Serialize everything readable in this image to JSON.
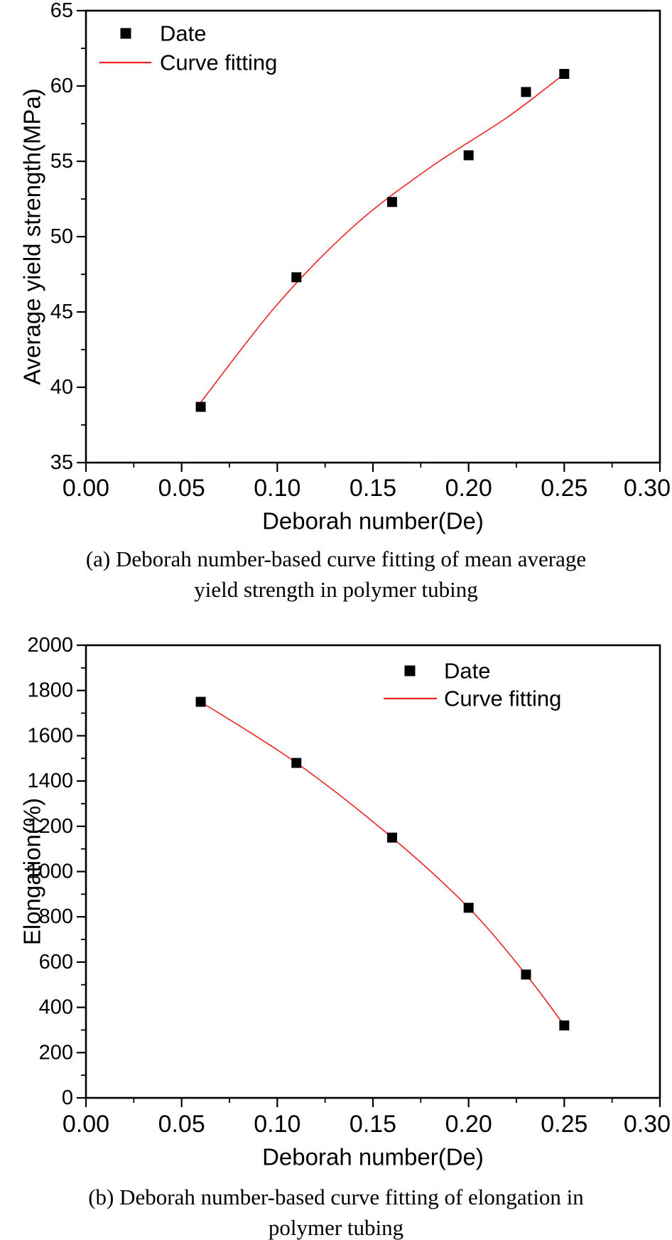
{
  "figure": {
    "background": "#ffffff",
    "axis_color": "#000000"
  },
  "chart_data": [
    {
      "id": "a",
      "type": "scatter",
      "title": "",
      "xlabel": "Deborah number(De)",
      "ylabel": "Average yield strength(MPa)",
      "xlim": [
        0,
        0.3
      ],
      "ylim": [
        35,
        65
      ],
      "xticks": [
        0,
        0.05,
        0.1,
        0.15,
        0.2,
        0.25,
        0.3
      ],
      "xtick_labels": [
        "0.00",
        "0.05",
        "0.10",
        "0.15",
        "0.20",
        "0.25",
        "0.30"
      ],
      "yticks": [
        35,
        40,
        45,
        50,
        55,
        60,
        65
      ],
      "ytick_labels": [
        "35",
        "40",
        "45",
        "50",
        "55",
        "60",
        "65"
      ],
      "x_minor_step": 0.025,
      "y_minor_step": 2.5,
      "grid": false,
      "legend_position": "upper-left-inside",
      "series": [
        {
          "name": "Date",
          "kind": "scatter",
          "marker": "square",
          "color": "#000000",
          "x": [
            0.06,
            0.11,
            0.16,
            0.2,
            0.23,
            0.25
          ],
          "y": [
            38.7,
            47.3,
            52.3,
            55.4,
            59.6,
            60.8
          ]
        },
        {
          "name": "Curve fitting",
          "kind": "line",
          "color": "#ee2222",
          "x": [
            0.06,
            0.1,
            0.14,
            0.18,
            0.22,
            0.25
          ],
          "y": [
            39.0,
            45.5,
            50.7,
            54.6,
            57.9,
            60.8
          ]
        }
      ],
      "caption_line1": "(a) Deborah number-based curve fitting of mean average",
      "caption_line2": "yield strength in polymer tubing"
    },
    {
      "id": "b",
      "type": "scatter",
      "title": "",
      "xlabel": "Deborah number(De)",
      "ylabel": "Elongation(%)",
      "xlim": [
        0,
        0.3
      ],
      "ylim": [
        0,
        2000
      ],
      "xticks": [
        0,
        0.05,
        0.1,
        0.15,
        0.2,
        0.25,
        0.3
      ],
      "xtick_labels": [
        "0.00",
        "0.05",
        "0.10",
        "0.15",
        "0.20",
        "0.25",
        "0.30"
      ],
      "yticks": [
        0,
        200,
        400,
        600,
        800,
        1000,
        1200,
        1400,
        1600,
        1800,
        2000
      ],
      "ytick_labels": [
        "0",
        "200",
        "400",
        "600",
        "800",
        "1000",
        "1200",
        "1400",
        "1600",
        "1800",
        "2000"
      ],
      "x_minor_step": 0.025,
      "y_minor_step": 100,
      "grid": false,
      "legend_position": "upper-right-inside",
      "series": [
        {
          "name": "Date",
          "kind": "scatter",
          "marker": "square",
          "color": "#000000",
          "x": [
            0.06,
            0.11,
            0.16,
            0.2,
            0.23,
            0.25
          ],
          "y": [
            1750,
            1480,
            1150,
            840,
            545,
            320
          ]
        },
        {
          "name": "Curve fitting",
          "kind": "line",
          "color": "#ee2222",
          "x": [
            0.06,
            0.11,
            0.16,
            0.2,
            0.23,
            0.25
          ],
          "y": [
            1750,
            1480,
            1150,
            840,
            545,
            320
          ]
        }
      ],
      "caption_line1": "(b) Deborah number-based curve fitting of elongation in",
      "caption_line2": "polymer tubing"
    }
  ]
}
